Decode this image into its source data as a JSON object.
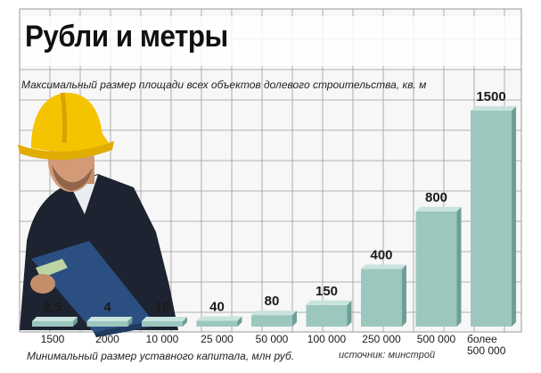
{
  "header": {
    "title": "Рубли и метры",
    "top_caption": "Максимальный размер площади всех объектов долевого строительства, кв. м",
    "bottom_caption": "Минимальный размер уставного капитала, млн руб.",
    "source": "источник: минстрой"
  },
  "colors": {
    "bar_front": "#9cc7bf",
    "bar_side": "#6e9f97",
    "bar_top": "#c9e3de",
    "grid": "#9a9a9a",
    "helmet": "#f5c400"
  },
  "chart_data": {
    "type": "bar",
    "categories": [
      "1500",
      "2000",
      "10 000",
      "25 000",
      "50 000",
      "100 000",
      "250 000",
      "500 000",
      "более 500 000"
    ],
    "values": [
      2.5,
      4,
      10,
      40,
      80,
      150,
      400,
      800,
      1500
    ],
    "value_labels": [
      "2,5",
      "4",
      "10",
      "40",
      "80",
      "150",
      "400",
      "800",
      "1500"
    ],
    "xlabel": "Минимальный размер уставного капитала, млн руб.",
    "ylabel": "Максимальный размер площади всех объектов долевого строительства, кв. м",
    "ylim": [
      0,
      1500
    ],
    "grid": true
  }
}
